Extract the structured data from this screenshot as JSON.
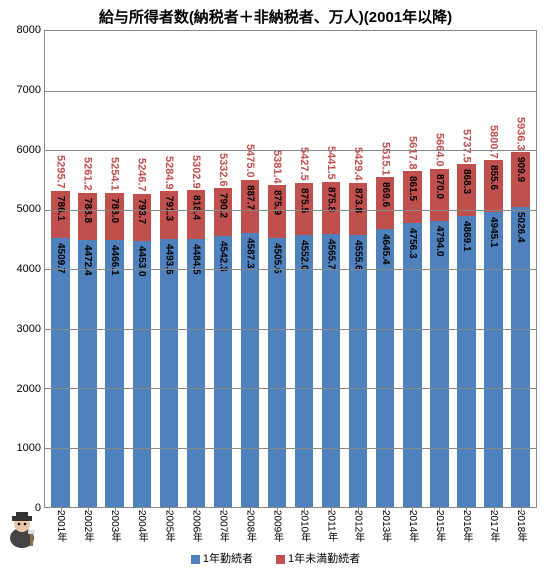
{
  "chart": {
    "type": "stacked-bar",
    "title": "給与所得者数(納税者＋非納税者、万人)(2001年以降)",
    "title_fontsize": 15,
    "background_color": "#ffffff",
    "grid_color": "#888888",
    "ylim": [
      0,
      8000
    ],
    "ytick_step": 1000,
    "yticks": [
      0,
      1000,
      2000,
      3000,
      4000,
      5000,
      6000,
      7000,
      8000
    ],
    "label_fontsize": 11,
    "value_label_fontsize": 10,
    "bar_width": 0.68,
    "categories": [
      "2001年",
      "2002年",
      "2003年",
      "2004年",
      "2005年",
      "2006年",
      "2007年",
      "2008年",
      "2009年",
      "2010年",
      "2011年",
      "2012年",
      "2013年",
      "2014年",
      "2015年",
      "2016年",
      "2017年",
      "2018年"
    ],
    "series": [
      {
        "name": "1年勤続者",
        "color": "#4f81bd",
        "values": [
          4509.7,
          4472.4,
          4466.1,
          4453.0,
          4493.6,
          4484.5,
          4542.3,
          4587.3,
          4505.6,
          4552.0,
          4565.7,
          4555.6,
          4645.4,
          4756.3,
          4794.0,
          4869.1,
          4945.1,
          5026.4
        ]
      },
      {
        "name": "1年未満勤続者",
        "color": "#c0504d",
        "values": [
          786.1,
          788.8,
          788.0,
          793.7,
          791.3,
          818.4,
          790.2,
          887.7,
          875.9,
          875.5,
          875.8,
          873.8,
          869.6,
          861.5,
          870.0,
          868.3,
          855.6,
          909.9
        ]
      }
    ],
    "totals": [
      5295.7,
      5261.2,
      5254.1,
      5246.7,
      5284.9,
      5302.9,
      5332.6,
      5475.0,
      5381.4,
      5427.5,
      5441.5,
      5429.4,
      5515.1,
      5617.8,
      5664.0,
      5737.5,
      5800.7,
      5936.3
    ],
    "total_label_color": "#c0504d",
    "legend_position": "bottom"
  }
}
